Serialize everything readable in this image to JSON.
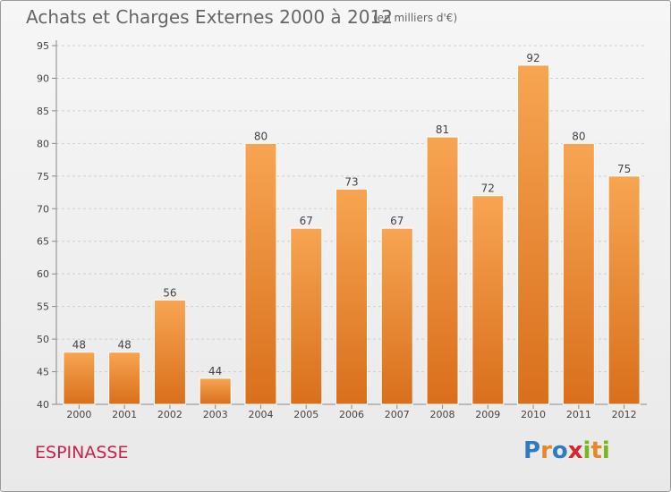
{
  "header": {
    "title": "Achats et Charges Externes 2000 à 2012",
    "unit": "(en milliers d'€)"
  },
  "footer": {
    "commune": "ESPINASSE",
    "logo_text": "Proxiti",
    "logo_letters": [
      {
        "char": "P",
        "color": "#2e7bc4"
      },
      {
        "char": "r",
        "color": "#e8862a"
      },
      {
        "char": "o",
        "color": "#2e7bc4"
      },
      {
        "char": "x",
        "color": "#d9262e"
      },
      {
        "char": "i",
        "color": "#7ab51d"
      },
      {
        "char": "t",
        "color": "#e8862a"
      },
      {
        "char": "i",
        "color": "#7ab51d"
      }
    ]
  },
  "chart_data": {
    "type": "bar",
    "title": "Achats et Charges Externes 2000 à 2012",
    "subtitle": "(en milliers d'€)",
    "xlabel": "",
    "ylabel": "",
    "categories": [
      "2000",
      "2001",
      "2002",
      "2003",
      "2004",
      "2005",
      "2006",
      "2007",
      "2008",
      "2009",
      "2010",
      "2011",
      "2012"
    ],
    "values": [
      48,
      48,
      56,
      44,
      80,
      67,
      73,
      67,
      81,
      72,
      92,
      80,
      75
    ],
    "ylim": [
      40,
      95
    ],
    "yticks": [
      40,
      45,
      50,
      55,
      60,
      65,
      70,
      75,
      80,
      85,
      90,
      95
    ],
    "grid": "dashed-horizontal",
    "legend": "none",
    "bar_color": "#f0963a"
  }
}
